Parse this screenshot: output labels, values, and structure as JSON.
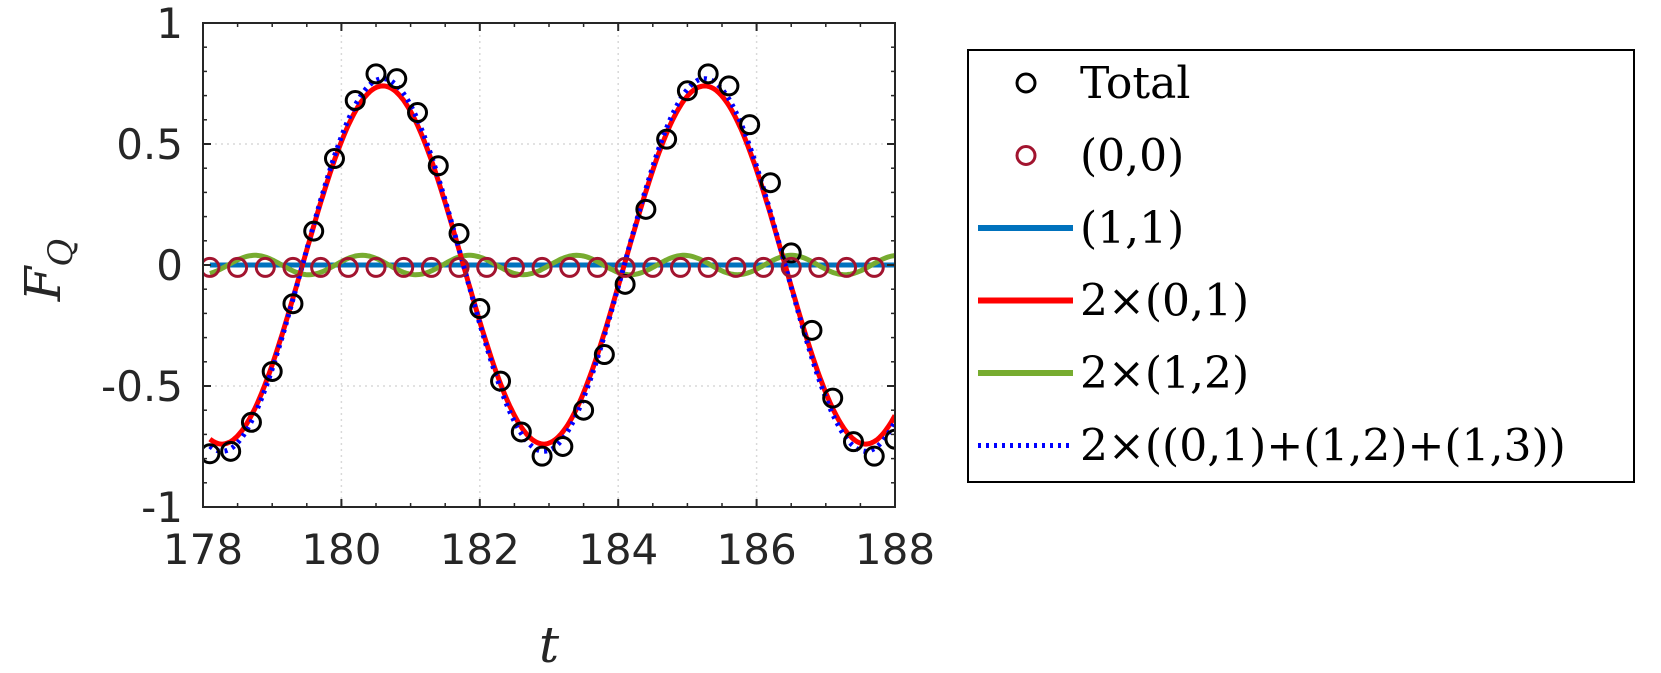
{
  "chart_data": {
    "type": "line",
    "title": "",
    "xlabel": "t",
    "ylabel_main": "F",
    "ylabel_sub": "Q",
    "xlim": [
      178,
      188
    ],
    "ylim": [
      -1,
      1
    ],
    "x_ticks": [
      178,
      180,
      182,
      184,
      186,
      188
    ],
    "x_tick_labels": [
      "178",
      "180",
      "182",
      "184",
      "186",
      "188"
    ],
    "y_ticks": [
      -1,
      -0.5,
      0,
      0.5,
      1
    ],
    "y_tick_labels": [
      "-1",
      "-0.5",
      "0",
      "0.5",
      "1"
    ],
    "grid": true,
    "legend_position": "outside-right",
    "series": [
      {
        "name": "Total",
        "style": "markers",
        "color": "#000000",
        "x": [
          178.1,
          178.4,
          178.7,
          179.0,
          179.3,
          179.6,
          179.9,
          180.2,
          180.5,
          180.8,
          181.1,
          181.4,
          181.7,
          182.0,
          182.3,
          182.6,
          182.9,
          183.2,
          183.5,
          183.8,
          184.1,
          184.4,
          184.7,
          185.0,
          185.3,
          185.6,
          185.9,
          186.2,
          186.5,
          186.8,
          187.1,
          187.4,
          187.7,
          188.0
        ],
        "y": [
          -0.78,
          -0.77,
          -0.65,
          -0.44,
          -0.16,
          0.14,
          0.44,
          0.68,
          0.79,
          0.77,
          0.63,
          0.41,
          0.13,
          -0.18,
          -0.48,
          -0.69,
          -0.79,
          -0.75,
          -0.6,
          -0.37,
          -0.08,
          0.23,
          0.52,
          0.72,
          0.79,
          0.74,
          0.58,
          0.34,
          0.05,
          -0.27,
          -0.55,
          -0.73,
          -0.79,
          -0.72
        ]
      },
      {
        "name": "(0,0)",
        "style": "markers",
        "color": "#a2142f",
        "x": [
          178.1,
          178.5,
          178.9,
          179.3,
          179.7,
          180.1,
          180.5,
          180.9,
          181.3,
          181.7,
          182.1,
          182.5,
          182.9,
          183.3,
          183.7,
          184.1,
          184.5,
          184.9,
          185.3,
          185.7,
          186.1,
          186.5,
          186.9,
          187.3,
          187.7
        ],
        "y": [
          -0.01,
          -0.01,
          -0.01,
          -0.01,
          -0.01,
          -0.01,
          -0.01,
          -0.01,
          -0.01,
          -0.01,
          -0.01,
          -0.01,
          -0.01,
          -0.01,
          -0.01,
          -0.01,
          -0.01,
          -0.01,
          -0.01,
          -0.01,
          -0.01,
          -0.01,
          -0.01,
          -0.01,
          -0.01
        ]
      },
      {
        "name": "(1,1)",
        "style": "line",
        "color": "#0072bd",
        "formula": "constant",
        "value": 0.0
      },
      {
        "name": "2×(0,1)",
        "style": "line",
        "color": "#ff0000",
        "formula": "sine",
        "amplitude": 0.74,
        "period": 4.65,
        "peak_t": 180.6,
        "offset": 0.0
      },
      {
        "name": "2×(1,2)",
        "style": "line",
        "color": "#77ac30",
        "formula": "sine",
        "amplitude": 0.04,
        "period": 1.55,
        "peak_t": 180.3,
        "offset": 0.0
      },
      {
        "name": "2×((0,1)+(1,2)+(1,3))",
        "style": "dotted",
        "color": "#0000ff",
        "formula": "sine",
        "amplitude": 0.77,
        "period": 4.65,
        "peak_t": 180.6,
        "offset": 0.0
      }
    ]
  }
}
